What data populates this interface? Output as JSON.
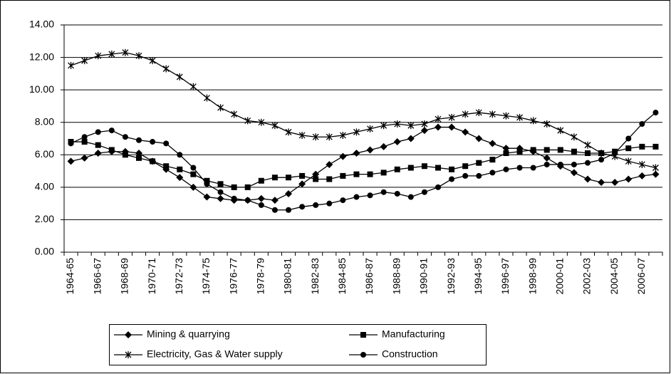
{
  "chart_data": {
    "type": "line",
    "categories": [
      "1964-65",
      null,
      "1966-67",
      null,
      "1968-69",
      null,
      "1970-71",
      null,
      "1972-73",
      null,
      "1974-75",
      null,
      "1976-77",
      null,
      "1978-79",
      null,
      "1980-81",
      null,
      "1982-83",
      null,
      "1984-85",
      null,
      "1986-87",
      null,
      "1988-89",
      null,
      "1990-91",
      null,
      "1992-93",
      null,
      "1994-95",
      null,
      "1996-97",
      null,
      "1998-99",
      null,
      "2000-01",
      null,
      "2002-03",
      null,
      "2004-05",
      null,
      "2006-07",
      null
    ],
    "series": [
      {
        "name": "Mining & quarrying",
        "color": "#000000",
        "marker": "diamond",
        "values": [
          5.6,
          5.8,
          6.1,
          6.2,
          6.2,
          6.1,
          5.6,
          5.1,
          4.6,
          4.0,
          3.4,
          3.3,
          3.2,
          3.2,
          3.3,
          3.2,
          3.6,
          4.2,
          4.8,
          5.4,
          5.9,
          6.1,
          6.3,
          6.5,
          6.8,
          7.0,
          7.5,
          7.7,
          7.7,
          7.4,
          7.0,
          6.7,
          6.4,
          6.4,
          6.2,
          5.8,
          5.3,
          4.9,
          4.5,
          4.3,
          4.3,
          4.5,
          4.7,
          4.8
        ]
      },
      {
        "name": "Manufacturing",
        "color": "#000000",
        "marker": "square",
        "values": [
          6.8,
          6.8,
          6.6,
          6.3,
          6.0,
          5.8,
          5.6,
          5.3,
          5.1,
          4.8,
          4.4,
          4.2,
          4.0,
          4.0,
          4.4,
          4.6,
          4.6,
          4.7,
          4.5,
          4.5,
          4.7,
          4.8,
          4.8,
          4.9,
          5.1,
          5.2,
          5.3,
          5.2,
          5.1,
          5.3,
          5.5,
          5.7,
          6.1,
          6.2,
          6.3,
          6.3,
          6.3,
          6.2,
          6.1,
          6.1,
          6.2,
          6.4,
          6.5,
          6.5
        ]
      },
      {
        "name": "Electricity, Gas & Water supply",
        "color": "#000000",
        "marker": "star",
        "values": [
          11.5,
          11.8,
          12.1,
          12.2,
          12.3,
          12.1,
          11.8,
          11.3,
          10.8,
          10.2,
          9.5,
          8.9,
          8.5,
          8.1,
          8.0,
          7.8,
          7.4,
          7.2,
          7.1,
          7.1,
          7.2,
          7.4,
          7.6,
          7.8,
          7.9,
          7.8,
          7.9,
          8.2,
          8.3,
          8.5,
          8.6,
          8.5,
          8.4,
          8.3,
          8.1,
          7.9,
          7.5,
          7.1,
          6.6,
          6.1,
          5.9,
          5.6,
          5.4,
          5.2
        ]
      },
      {
        "name": "Construction",
        "color": "#000000",
        "marker": "circle",
        "values": [
          6.7,
          7.1,
          7.4,
          7.5,
          7.1,
          6.9,
          6.8,
          6.7,
          6.0,
          5.2,
          4.2,
          3.7,
          3.3,
          3.2,
          2.9,
          2.6,
          2.6,
          2.8,
          2.9,
          3.0,
          3.2,
          3.4,
          3.5,
          3.7,
          3.6,
          3.4,
          3.7,
          4.0,
          4.5,
          4.7,
          4.7,
          4.9,
          5.1,
          5.2,
          5.2,
          5.4,
          5.4,
          5.4,
          5.5,
          5.7,
          6.1,
          7.0,
          7.9,
          8.6
        ]
      }
    ],
    "ylim": [
      0,
      14
    ],
    "yticks": [
      {
        "value": 0,
        "label": "0.00"
      },
      {
        "value": 2,
        "label": "2.00"
      },
      {
        "value": 4,
        "label": "4.00"
      },
      {
        "value": 6,
        "label": "6.00"
      },
      {
        "value": 8,
        "label": "8.00"
      },
      {
        "value": 10,
        "label": "10.00"
      },
      {
        "value": 12,
        "label": "12.00"
      },
      {
        "value": 14,
        "label": "14.00"
      }
    ],
    "grid": true,
    "legend": "bottom"
  }
}
